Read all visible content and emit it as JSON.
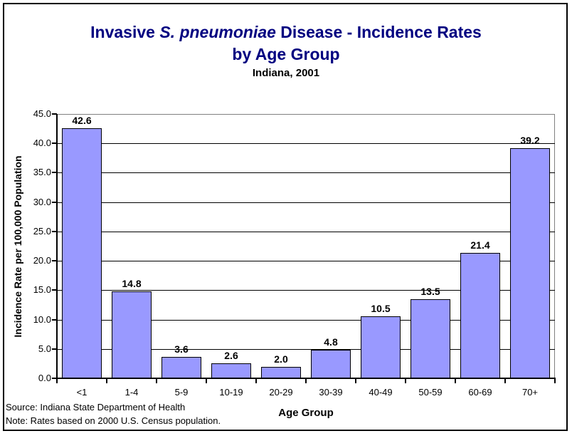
{
  "title": {
    "line1_prefix": "Invasive ",
    "line1_italic": "S. pneumoniae",
    "line1_suffix": " Disease - Incidence Rates",
    "line2": "by Age Group",
    "subtitle": "Indiana, 2001",
    "color": "#000080"
  },
  "footer": {
    "source": "Source: Indiana State Department of Health",
    "note": "Note: Rates based on 2000 U.S. Census population."
  },
  "chart_data": {
    "type": "bar",
    "title": "Invasive S. pneumoniae Disease - Incidence Rates by Age Group",
    "subtitle": "Indiana, 2001",
    "categories": [
      "<1",
      "1-4",
      "5-9",
      "10-19",
      "20-29",
      "30-39",
      "40-49",
      "50-59",
      "60-69",
      "70+"
    ],
    "values": [
      42.6,
      14.8,
      3.6,
      2.6,
      2.0,
      4.8,
      10.5,
      13.5,
      21.4,
      39.2
    ],
    "data_labels": [
      "42.6",
      "14.8",
      "3.6",
      "2.6",
      "2.0",
      "4.8",
      "10.5",
      "13.5",
      "21.4",
      "39.2"
    ],
    "xlabel": "Age Group",
    "ylabel": "Incidence Rate per 100,000 Population",
    "ylim": [
      0,
      45
    ],
    "ytick_step": 5,
    "ytick_labels": [
      "45.0",
      "40.0",
      "35.0",
      "30.0",
      "25.0",
      "20.0",
      "15.0",
      "10.0",
      "5.0",
      "0.0"
    ],
    "grid": true,
    "legend": "none",
    "bar_color": "#9999FF",
    "bar_border_color": "#000000",
    "gridline_color": "#000000",
    "plot_border_color": "#808080"
  }
}
